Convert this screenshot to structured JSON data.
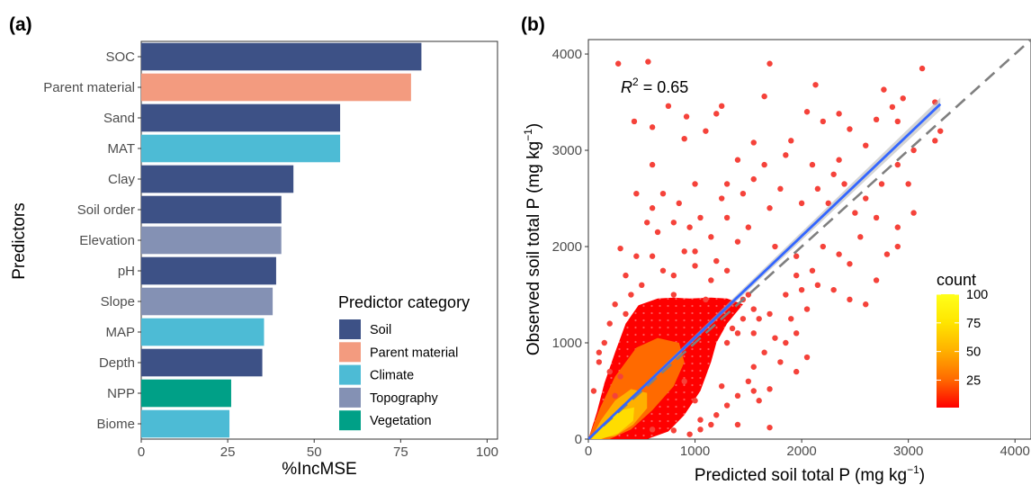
{
  "panel_a": {
    "letter": "(a)",
    "chart_data": {
      "type": "bar",
      "orientation": "horizontal",
      "categories": [
        "SOC",
        "Parent material",
        "Sand",
        "MAT",
        "Clay",
        "Soil order",
        "Elevation",
        "pH",
        "Slope",
        "MAP",
        "Depth",
        "NPP",
        "Biome"
      ],
      "values": [
        81,
        78,
        57.5,
        57.5,
        44,
        40.5,
        40.5,
        39,
        38,
        35.5,
        35,
        26,
        25.5
      ],
      "groups": [
        "Soil",
        "Parent material",
        "Soil",
        "Climate",
        "Soil",
        "Soil",
        "Topography",
        "Soil",
        "Topography",
        "Climate",
        "Soil",
        "Vegetation",
        "Climate"
      ],
      "xlabel": "%IncMSE",
      "ylabel": "Predictors",
      "xlim": [
        0,
        103
      ],
      "xticks": [
        0,
        25,
        50,
        75,
        100
      ],
      "xtick_labels": [
        "0",
        "25",
        "50",
        "75",
        "100"
      ],
      "grid": false,
      "legend": {
        "title": "Predictor category",
        "position": "bottom-right",
        "items": [
          {
            "label": "Soil",
            "color": "#3d5186"
          },
          {
            "label": "Parent material",
            "color": "#f39b7f"
          },
          {
            "label": "Climate",
            "color": "#4dbbd5"
          },
          {
            "label": "Topography",
            "color": "#8491b4"
          },
          {
            "label": "Vegetation",
            "color": "#00a087"
          }
        ]
      }
    }
  },
  "panel_b": {
    "letter": "(b)",
    "chart_data": {
      "type": "hexbin-scatter",
      "xlabel_main": "Predicted soil total P (mg kg",
      "ylabel_main": "Observed soil total P (mg kg",
      "unit_superscript": "−1",
      "unit_close": ")",
      "xlim": [
        0,
        4150
      ],
      "ylim": [
        0,
        4150
      ],
      "xticks": [
        0,
        1000,
        2000,
        3000,
        4000
      ],
      "xtick_labels": [
        "0",
        "1000",
        "2000",
        "3000",
        "4000"
      ],
      "yticks": [
        0,
        1000,
        2000,
        3000,
        4000
      ],
      "ytick_labels": [
        "0",
        "1000",
        "2000",
        "3000",
        "4000"
      ],
      "annotation": {
        "r_symbol": "R",
        "r_exp": "2",
        "r_value": " = 0.65"
      },
      "fit_line": {
        "x": [
          0,
          3300
        ],
        "y": [
          0,
          3480
        ],
        "color": "#3366ff"
      },
      "one_to_one_line": {
        "x": [
          0,
          4150
        ],
        "y": [
          0,
          4150
        ],
        "color": "#7f7f7f",
        "style": "dashed"
      },
      "colorbar": {
        "title": "count",
        "ticks": [
          25,
          50,
          75,
          100
        ],
        "tick_labels": [
          "25",
          "50",
          "75",
          "100"
        ],
        "range": [
          1,
          100
        ],
        "colors": [
          "#ff0000",
          "#ff6a00",
          "#ffb000",
          "#ffe500",
          "#ffff1a"
        ]
      },
      "points": [
        [
          280,
          3900
        ],
        [
          560,
          3920
        ],
        [
          1700,
          3900
        ],
        [
          3130,
          3850
        ],
        [
          2130,
          3680
        ],
        [
          1650,
          3560
        ],
        [
          2770,
          3630
        ],
        [
          2950,
          3540
        ],
        [
          3250,
          3500
        ],
        [
          3300,
          3200
        ],
        [
          430,
          3300
        ],
        [
          600,
          3240
        ],
        [
          750,
          3460
        ],
        [
          1250,
          3460
        ],
        [
          1200,
          3380
        ],
        [
          920,
          3350
        ],
        [
          900,
          3120
        ],
        [
          1100,
          3200
        ],
        [
          1550,
          3080
        ],
        [
          1900,
          3100
        ],
        [
          2050,
          3400
        ],
        [
          2200,
          3300
        ],
        [
          2350,
          3380
        ],
        [
          2450,
          3220
        ],
        [
          2700,
          3320
        ],
        [
          2850,
          3450
        ],
        [
          2900,
          3300
        ],
        [
          3050,
          3000
        ],
        [
          2600,
          3050
        ],
        [
          2350,
          2900
        ],
        [
          2300,
          2750
        ],
        [
          2100,
          2850
        ],
        [
          1850,
          2950
        ],
        [
          1650,
          2850
        ],
        [
          1550,
          2700
        ],
        [
          1400,
          2900
        ],
        [
          1300,
          2650
        ],
        [
          1800,
          2600
        ],
        [
          2150,
          2600
        ],
        [
          2400,
          2650
        ],
        [
          2600,
          2500
        ],
        [
          2750,
          2650
        ],
        [
          2900,
          2850
        ],
        [
          3000,
          2650
        ],
        [
          1450,
          2550
        ],
        [
          1250,
          2500
        ],
        [
          1000,
          2650
        ],
        [
          850,
          2450
        ],
        [
          700,
          2550
        ],
        [
          600,
          2850
        ],
        [
          450,
          2550
        ],
        [
          600,
          2400
        ],
        [
          3050,
          2350
        ],
        [
          2900,
          2200
        ],
        [
          2500,
          2350
        ],
        [
          2700,
          2300
        ],
        [
          3250,
          3100
        ],
        [
          2250,
          2450
        ],
        [
          2000,
          2450
        ],
        [
          1700,
          2400
        ],
        [
          1300,
          2300
        ],
        [
          1050,
          2300
        ],
        [
          950,
          2200
        ],
        [
          800,
          2250
        ],
        [
          650,
          2150
        ],
        [
          550,
          2250
        ],
        [
          300,
          1980
        ],
        [
          1150,
          2100
        ],
        [
          1500,
          2200
        ],
        [
          2550,
          2100
        ],
        [
          2900,
          2000
        ],
        [
          2800,
          1920
        ],
        [
          2350,
          1920
        ],
        [
          2450,
          1820
        ],
        [
          2200,
          2000
        ],
        [
          1950,
          1900
        ],
        [
          1750,
          2000
        ],
        [
          1400,
          2050
        ],
        [
          2700,
          1650
        ],
        [
          2100,
          1750
        ],
        [
          1950,
          1700
        ],
        [
          2150,
          1600
        ],
        [
          1850,
          1500
        ],
        [
          1700,
          1300
        ],
        [
          1900,
          1250
        ],
        [
          2050,
          1350
        ],
        [
          2300,
          1550
        ],
        [
          2450,
          1450
        ],
        [
          2600,
          1400
        ],
        [
          1950,
          1100
        ],
        [
          1750,
          1050
        ],
        [
          1650,
          900
        ],
        [
          1850,
          1000
        ],
        [
          2050,
          850
        ],
        [
          1950,
          700
        ],
        [
          1550,
          750
        ],
        [
          1500,
          600
        ],
        [
          1550,
          500
        ],
        [
          1400,
          450
        ],
        [
          1300,
          350
        ],
        [
          1600,
          400
        ],
        [
          1250,
          550
        ],
        [
          1700,
          120
        ],
        [
          1050,
          100
        ],
        [
          1300,
          1000
        ],
        [
          1700,
          520
        ],
        [
          1450,
          1250
        ],
        [
          1350,
          1150
        ],
        [
          1550,
          1100
        ],
        [
          1200,
          1850
        ],
        [
          1150,
          1650
        ],
        [
          1300,
          1750
        ],
        [
          1000,
          1800
        ],
        [
          900,
          1950
        ],
        [
          800,
          1700
        ],
        [
          700,
          1750
        ],
        [
          600,
          1900
        ],
        [
          500,
          1600
        ],
        [
          400,
          1500
        ],
        [
          350,
          1700
        ],
        [
          250,
          1400
        ],
        [
          200,
          1200
        ],
        [
          150,
          1000
        ],
        [
          100,
          800
        ],
        [
          200,
          700
        ],
        [
          350,
          1300
        ],
        [
          450,
          1900
        ],
        [
          1000,
          1950
        ],
        [
          1100,
          1450
        ],
        [
          800,
          1500
        ],
        [
          1450,
          1450
        ],
        [
          1500,
          1500
        ],
        [
          1550,
          1350
        ],
        [
          1600,
          1250
        ],
        [
          1400,
          1100
        ],
        [
          300,
          650
        ],
        [
          100,
          900
        ],
        [
          50,
          500
        ],
        [
          250,
          450
        ],
        [
          1050,
          200
        ],
        [
          900,
          600
        ],
        [
          1200,
          250
        ],
        [
          1000,
          400
        ],
        [
          1150,
          150
        ],
        [
          800,
          90
        ],
        [
          600,
          100
        ],
        [
          950,
          50
        ],
        [
          1400,
          150
        ],
        [
          1800,
          800
        ],
        [
          2000,
          1550
        ]
      ],
      "dense_region": {
        "polygon": [
          [
            0,
            0
          ],
          [
            80,
            280
          ],
          [
            150,
            580
          ],
          [
            250,
            900
          ],
          [
            350,
            1200
          ],
          [
            470,
            1390
          ],
          [
            650,
            1460
          ],
          [
            800,
            1470
          ],
          [
            950,
            1460
          ],
          [
            1150,
            1470
          ],
          [
            1300,
            1460
          ],
          [
            1450,
            1400
          ],
          [
            1300,
            1200
          ],
          [
            1200,
            1000
          ],
          [
            1150,
            800
          ],
          [
            1050,
            500
          ],
          [
            900,
            250
          ],
          [
            750,
            80
          ],
          [
            550,
            0
          ]
        ],
        "hot_core": [
          [
            0,
            0
          ],
          [
            100,
            300
          ],
          [
            250,
            650
          ],
          [
            450,
            950
          ],
          [
            650,
            1050
          ],
          [
            850,
            1000
          ],
          [
            900,
            800
          ],
          [
            800,
            550
          ],
          [
            600,
            300
          ],
          [
            400,
            100
          ],
          [
            200,
            0
          ]
        ],
        "peak_core": [
          [
            20,
            0
          ],
          [
            120,
            200
          ],
          [
            250,
            400
          ],
          [
            400,
            520
          ],
          [
            550,
            480
          ],
          [
            550,
            320
          ],
          [
            420,
            150
          ],
          [
            250,
            30
          ]
        ]
      }
    }
  }
}
